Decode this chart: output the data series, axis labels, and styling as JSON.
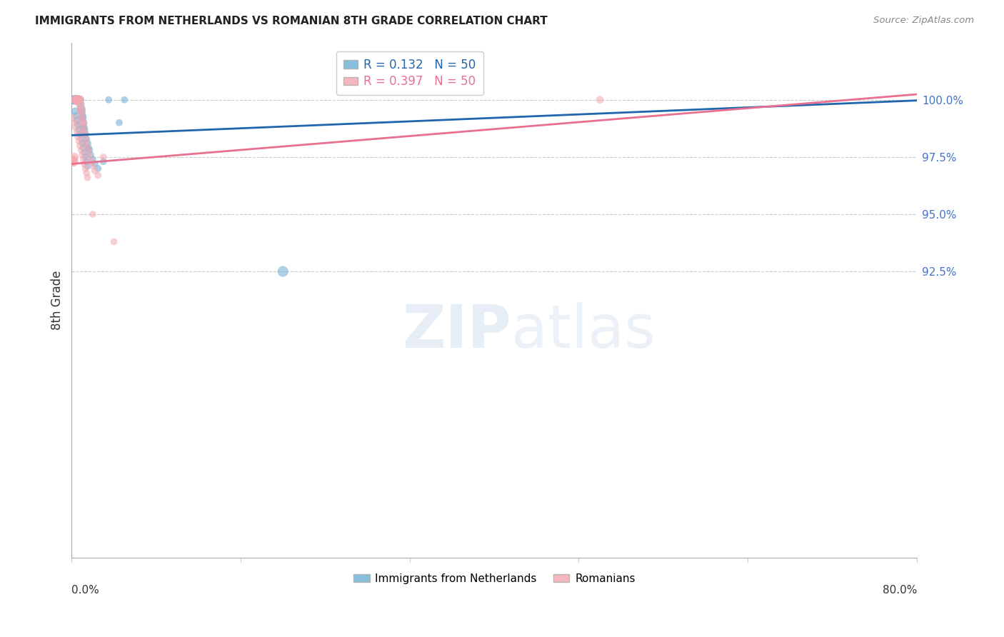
{
  "title": "IMMIGRANTS FROM NETHERLANDS VS ROMANIAN 8TH GRADE CORRELATION CHART",
  "source": "Source: ZipAtlas.com",
  "ylabel": "8th Grade",
  "yticks": [
    80.0,
    92.5,
    95.0,
    97.5,
    100.0
  ],
  "ytick_labels": [
    "",
    "92.5%",
    "95.0%",
    "97.5%",
    "100.0%"
  ],
  "xlim": [
    0.0,
    80.0
  ],
  "ylim": [
    80.0,
    102.5
  ],
  "legend_entry1": "R = 0.132   N = 50",
  "legend_entry2": "R = 0.397   N = 50",
  "legend_label1": "Immigrants from Netherlands",
  "legend_label2": "Romanians",
  "blue_color": "#6aaed6",
  "pink_color": "#f4a6b0",
  "blue_line_color": "#2166ac",
  "pink_line_color": "#e87090",
  "netherlands_x": [
    0.1,
    0.15,
    0.2,
    0.25,
    0.3,
    0.35,
    0.4,
    0.45,
    0.5,
    0.55,
    0.6,
    0.65,
    0.7,
    0.75,
    0.8,
    0.85,
    0.9,
    0.95,
    1.0,
    1.05,
    1.1,
    1.15,
    1.2,
    1.3,
    1.4,
    1.5,
    1.6,
    1.7,
    1.8,
    2.0,
    2.2,
    2.5,
    3.0,
    3.5,
    4.5,
    0.3,
    0.4,
    0.5,
    0.6,
    0.7,
    0.8,
    0.9,
    1.0,
    1.1,
    1.2,
    1.3,
    1.4,
    1.5,
    5.0,
    20.0
  ],
  "netherlands_y": [
    100.0,
    100.0,
    100.0,
    100.0,
    100.0,
    100.0,
    100.0,
    100.0,
    100.0,
    100.0,
    100.0,
    100.0,
    100.0,
    100.0,
    100.0,
    99.8,
    99.6,
    99.5,
    99.3,
    99.2,
    99.0,
    98.8,
    98.7,
    98.5,
    98.3,
    98.1,
    97.9,
    97.8,
    97.6,
    97.4,
    97.2,
    97.0,
    97.3,
    100.0,
    99.0,
    99.5,
    99.3,
    99.1,
    98.9,
    98.7,
    98.5,
    98.3,
    98.1,
    97.9,
    97.7,
    97.5,
    97.3,
    97.1,
    100.0,
    92.5
  ],
  "romanian_x": [
    0.1,
    0.15,
    0.2,
    0.25,
    0.3,
    0.35,
    0.4,
    0.45,
    0.5,
    0.55,
    0.6,
    0.65,
    0.7,
    0.75,
    0.8,
    0.85,
    0.9,
    0.95,
    1.0,
    1.05,
    1.1,
    1.15,
    1.2,
    1.3,
    1.4,
    1.5,
    1.6,
    1.7,
    1.8,
    2.0,
    2.2,
    2.5,
    3.0,
    0.2,
    0.3,
    0.4,
    0.5,
    0.6,
    0.7,
    0.8,
    0.9,
    1.0,
    1.1,
    1.2,
    1.3,
    1.4,
    1.5,
    2.0,
    4.0,
    50.0
  ],
  "romanian_y": [
    97.3,
    97.4,
    97.3,
    97.5,
    100.0,
    100.0,
    100.0,
    100.0,
    100.0,
    100.0,
    100.0,
    100.0,
    100.0,
    100.0,
    99.8,
    99.6,
    99.5,
    99.3,
    99.1,
    99.0,
    98.8,
    98.6,
    98.5,
    98.3,
    98.1,
    97.9,
    97.7,
    97.5,
    97.3,
    97.1,
    96.9,
    96.7,
    97.5,
    99.2,
    99.0,
    98.8,
    98.6,
    98.4,
    98.2,
    98.0,
    97.8,
    97.6,
    97.4,
    97.2,
    97.0,
    96.8,
    96.6,
    95.0,
    93.8,
    100.0
  ],
  "netherlands_sizes": [
    70,
    60,
    80,
    60,
    100,
    80,
    90,
    70,
    80,
    70,
    80,
    70,
    80,
    60,
    70,
    60,
    80,
    60,
    70,
    60,
    70,
    60,
    60,
    60,
    50,
    60,
    50,
    50,
    50,
    50,
    50,
    50,
    50,
    50,
    50,
    60,
    50,
    60,
    50,
    60,
    50,
    50,
    50,
    50,
    50,
    50,
    50,
    50,
    50,
    120
  ],
  "romanian_sizes": [
    100,
    80,
    90,
    80,
    70,
    80,
    90,
    80,
    100,
    80,
    90,
    70,
    80,
    70,
    80,
    70,
    80,
    60,
    70,
    60,
    70,
    60,
    60,
    60,
    50,
    60,
    50,
    50,
    50,
    50,
    50,
    50,
    50,
    60,
    50,
    60,
    50,
    60,
    50,
    60,
    50,
    50,
    50,
    50,
    50,
    50,
    50,
    50,
    50,
    60
  ]
}
